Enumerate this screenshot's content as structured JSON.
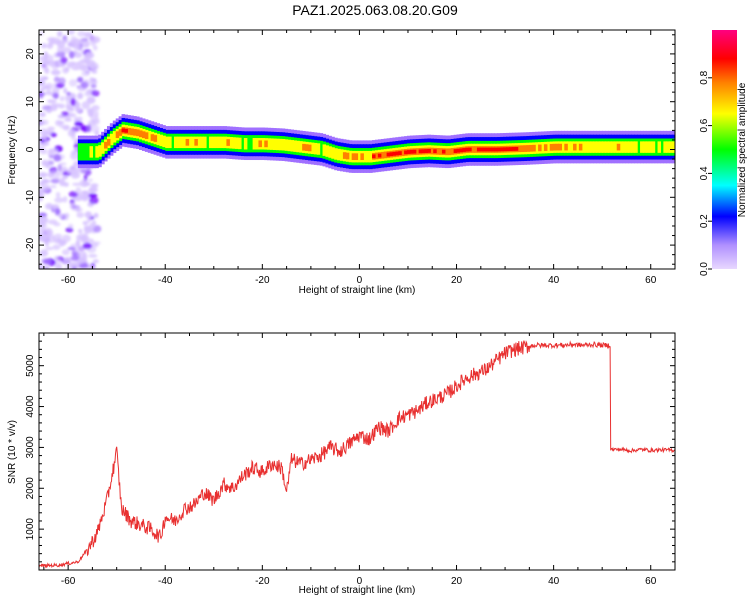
{
  "title": "PAZ1.2025.063.08.20.G09",
  "chart_data": [
    {
      "type": "heatmap",
      "xlabel": "Height of straight line (km)",
      "ylabel": "Frequency (Hz)",
      "xlim": [
        -66,
        65
      ],
      "ylim": [
        -25,
        25
      ],
      "xticks": [
        -60,
        -40,
        -20,
        0,
        20,
        40,
        60
      ],
      "yticks": [
        -20,
        -10,
        0,
        10,
        20
      ],
      "colorbar": {
        "label": "Normalized spectral amplitude",
        "range": [
          0,
          1
        ],
        "ticks": [
          "0.0",
          "0.2",
          "0.4",
          "0.6",
          "0.8"
        ],
        "tick_values": [
          0.0,
          0.2,
          0.4,
          0.6,
          0.8
        ],
        "colors": [
          "#e8d8ff",
          "#a070ff",
          "#0000ff",
          "#00ffff",
          "#00ff00",
          "#ffff00",
          "#ff8000",
          "#ff0000",
          "#ff0080"
        ]
      },
      "ridge": {
        "x": [
          -58,
          -54,
          -51,
          -49,
          -46,
          -43,
          -40,
          -36,
          -32,
          -28,
          -24,
          -20,
          -16,
          -12,
          -8,
          -5,
          -2,
          2,
          6,
          10,
          14,
          18,
          22,
          28,
          34,
          40,
          50,
          60,
          65
        ],
        "freq": [
          -0.5,
          -0.5,
          2.5,
          4,
          3.5,
          2.5,
          1.5,
          1.5,
          1.5,
          1.5,
          1.2,
          1.2,
          1.0,
          0.5,
          0,
          -1,
          -1.5,
          -1.5,
          -1,
          -0.5,
          -0.3,
          -0.5,
          0,
          0,
          0.2,
          0.5,
          0.5,
          0.5,
          0.5
        ],
        "amplitude": [
          0.45,
          0.55,
          0.75,
          0.95,
          0.8,
          0.7,
          0.6,
          0.65,
          0.6,
          0.7,
          0.6,
          0.65,
          0.6,
          0.65,
          0.6,
          0.65,
          0.7,
          0.75,
          0.85,
          0.9,
          0.85,
          0.8,
          0.95,
          0.95,
          0.8,
          0.7,
          0.65,
          0.6,
          0.6
        ]
      }
    },
    {
      "type": "line",
      "xlabel": "Height of straight line (km)",
      "ylabel": "SNR (10 * v/v)",
      "xlim": [
        -66,
        65
      ],
      "ylim": [
        0,
        5800
      ],
      "xticks": [
        -60,
        -40,
        -20,
        0,
        20,
        40,
        60
      ],
      "yticks": [
        1000,
        2000,
        3000,
        4000,
        5000
      ],
      "color": "#e83030",
      "series": [
        {
          "x": [
            -66,
            -62,
            -58,
            -56,
            -54,
            -52,
            -50.5,
            -50,
            -49,
            -47,
            -45,
            -43,
            -41,
            -40,
            -38,
            -36,
            -34,
            -32,
            -30,
            -28,
            -26,
            -24,
            -22,
            -20,
            -18,
            -16,
            -15,
            -14,
            -12,
            -10,
            -8,
            -6,
            -4,
            -2,
            0,
            2,
            4,
            6,
            8,
            10,
            12,
            14,
            16,
            18,
            20,
            22,
            24,
            26,
            28,
            30,
            32,
            34,
            36,
            38,
            40,
            42,
            44,
            46,
            48,
            50,
            51.5,
            52,
            54,
            56,
            58,
            60,
            62,
            65
          ],
          "y": [
            100,
            120,
            200,
            500,
            900,
            1700,
            2600,
            2900,
            1500,
            1200,
            1100,
            1000,
            800,
            1300,
            1200,
            1500,
            1600,
            1900,
            1700,
            2100,
            2000,
            2300,
            2500,
            2400,
            2600,
            2500,
            1900,
            2700,
            2600,
            2700,
            2800,
            3000,
            2900,
            3100,
            3300,
            3200,
            3500,
            3400,
            3700,
            3800,
            3900,
            4100,
            4200,
            4300,
            4500,
            4700,
            4800,
            4900,
            5100,
            5300,
            5400,
            5450,
            5500,
            5500,
            5500,
            5500,
            5520,
            5500,
            5520,
            5500,
            5500,
            2950,
            2950,
            2920,
            2950,
            2930,
            2940,
            2930
          ]
        }
      ]
    }
  ]
}
